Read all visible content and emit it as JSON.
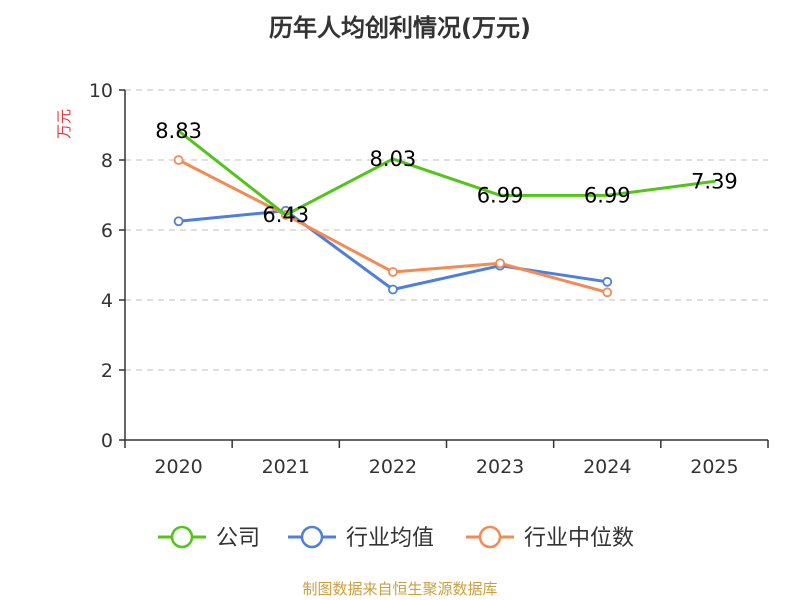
{
  "chart_data": {
    "type": "line",
    "title": "历年人均创利情况(万元)",
    "ylabel": "万元",
    "xlabel": "",
    "categories": [
      "2020",
      "2021",
      "2022",
      "2023",
      "2024",
      "2025"
    ],
    "ylim": [
      0,
      10
    ],
    "yticks": [
      0,
      2,
      4,
      6,
      8,
      10
    ],
    "grid": true,
    "legend_position": "bottom",
    "series": [
      {
        "name": "公司",
        "color": "#52c41a",
        "values": [
          8.83,
          6.43,
          8.03,
          6.99,
          6.99,
          7.39
        ],
        "labels": [
          "8.83",
          "6.43",
          "8.03",
          "6.99",
          "6.99",
          "7.39"
        ],
        "markers": false
      },
      {
        "name": "行业均值",
        "color": "#4e7fd9",
        "values": [
          6.25,
          6.55,
          4.3,
          4.98,
          4.52,
          null
        ],
        "markers": true
      },
      {
        "name": "行业中位数",
        "color": "#f28b54",
        "values": [
          8.0,
          6.43,
          4.8,
          5.05,
          4.22,
          null
        ],
        "markers": true
      }
    ]
  },
  "source": "制图数据来自恒生聚源数据库"
}
